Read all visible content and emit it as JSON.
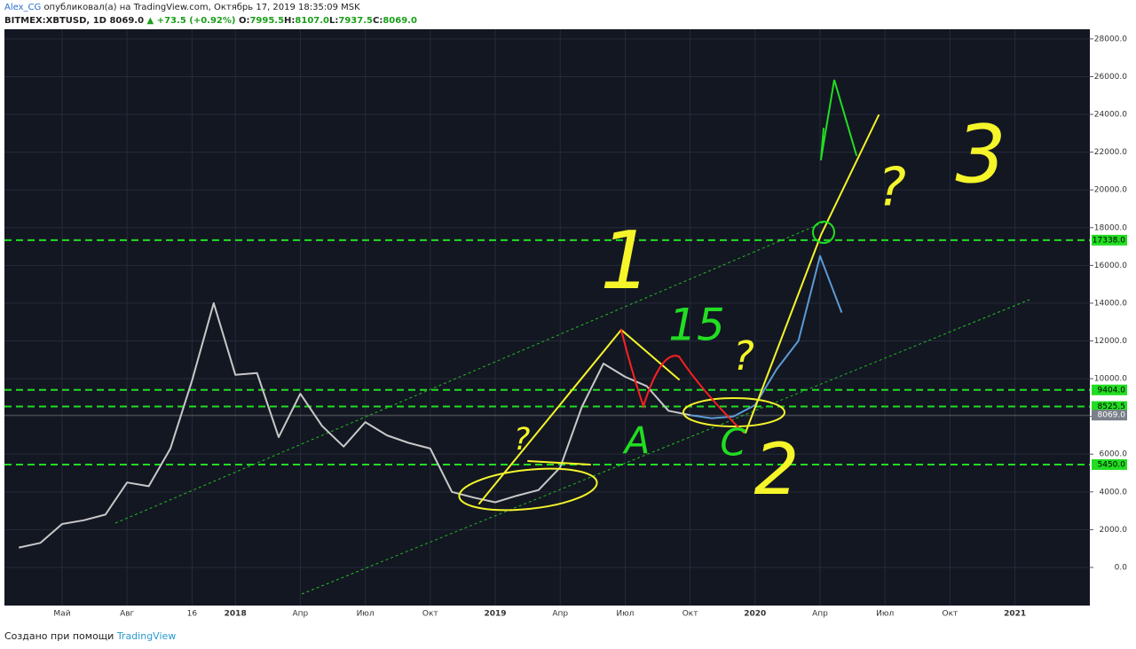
{
  "header": {
    "author": "Alex_CG",
    "published": "опубликовал(а) на TradingView.com, Октябрь 17, 2019 18:35:09 MSK",
    "symbol": "BITMEX:XBTUSD, 1D",
    "last": "8069.0",
    "change": "▲ +73.5 (+0.92%)",
    "ohlc": [
      {
        "label": "O:",
        "value": "7995.5"
      },
      {
        "label": "H:",
        "value": "8107.0"
      },
      {
        "label": "L:",
        "value": "7937.5"
      },
      {
        "label": "C:",
        "value": "8069.0"
      }
    ]
  },
  "footer": {
    "text": "Создано при помощи",
    "brand": "TradingView"
  },
  "chart_data": {
    "type": "line",
    "categories": [
      null,
      null,
      "Май",
      null,
      null,
      "Авг",
      null,
      null,
      "16",
      null,
      "2018",
      null,
      null,
      "Апр",
      null,
      null,
      "Июл",
      null,
      null,
      "Окт",
      null,
      null,
      "2019",
      null,
      null,
      "Апр",
      null,
      null,
      "Июл",
      null,
      null,
      "Окт",
      null,
      null,
      "2020",
      null,
      null,
      "Апр",
      null,
      null,
      "Июл",
      null,
      null,
      "Окт",
      null,
      null,
      "2021",
      null,
      null,
      null
    ],
    "series": [
      {
        "color": "#c8c8c8",
        "values": [
          1050,
          1300,
          2300,
          2500,
          2800,
          4500,
          4300,
          6300,
          9900,
          14000,
          10200,
          10300,
          6900,
          9200,
          7500,
          6400,
          7700,
          7000,
          6600,
          6300,
          4000,
          3700,
          3450,
          3800,
          4100,
          5300,
          8500,
          10800,
          10100,
          9600,
          8300,
          8069,
          null,
          null,
          null,
          null,
          null,
          null,
          null,
          null,
          null,
          null,
          null,
          null,
          null,
          null,
          null,
          null,
          null,
          null
        ]
      },
      {
        "color": "#5b9bd5",
        "values": [
          null,
          null,
          null,
          null,
          null,
          null,
          null,
          null,
          null,
          null,
          null,
          null,
          null,
          null,
          null,
          null,
          null,
          null,
          null,
          null,
          null,
          null,
          null,
          null,
          null,
          null,
          null,
          null,
          null,
          null,
          null,
          8069,
          7900,
          8000,
          8600,
          10500,
          12000,
          16500,
          13500,
          null,
          null,
          null,
          null,
          null,
          null,
          null,
          null,
          null,
          null,
          null
        ]
      }
    ],
    "ylim": [
      -2020,
      28510
    ],
    "yticks": [
      {
        "value": 0,
        "label": "0.0"
      },
      {
        "value": 2000,
        "label": "2000.0"
      },
      {
        "value": 4000,
        "label": "4000.0"
      },
      {
        "value": 6000,
        "label": "6000.0"
      },
      {
        "value": 8000,
        "label": "8000.0"
      },
      {
        "value": 10000,
        "label": "10000.0"
      },
      {
        "value": 12000,
        "label": "12000.0"
      },
      {
        "value": 14000,
        "label": "14000.0"
      },
      {
        "value": 16000,
        "label": "16000.0"
      },
      {
        "value": 18000,
        "label": "18000.0"
      },
      {
        "value": 20000,
        "label": "20000.0"
      },
      {
        "value": 22000,
        "label": "22000.0"
      },
      {
        "value": 24000,
        "label": "24000.0"
      },
      {
        "value": 26000,
        "label": "26000.0"
      },
      {
        "value": 28000,
        "label": "28000.0"
      }
    ],
    "grid": true,
    "levels": [
      {
        "value": 17338,
        "label": "17338.0"
      },
      {
        "value": 9404,
        "label": "9404.0"
      },
      {
        "value": 8525.5,
        "label": "8525.5"
      },
      {
        "value": 5450,
        "label": "5450.0"
      }
    ],
    "level_color": "#22dd22",
    "current_price": {
      "value": 8069,
      "label": "8069.0"
    },
    "annotations": [
      {
        "text": "1",
        "color": "#f5f52a"
      },
      {
        "text": "15",
        "color": "#22dd22"
      },
      {
        "text": "A",
        "color": "#22dd22"
      },
      {
        "text": "C",
        "color": "#22dd22"
      },
      {
        "text": "2",
        "color": "#f5f52a"
      },
      {
        "text": "3",
        "color": "#f5f52a"
      },
      {
        "text": "?",
        "color": "#f5f52a"
      },
      {
        "text": "?",
        "color": "#f5f52a"
      },
      {
        "text": "?",
        "color": "#f5f52a"
      }
    ]
  }
}
